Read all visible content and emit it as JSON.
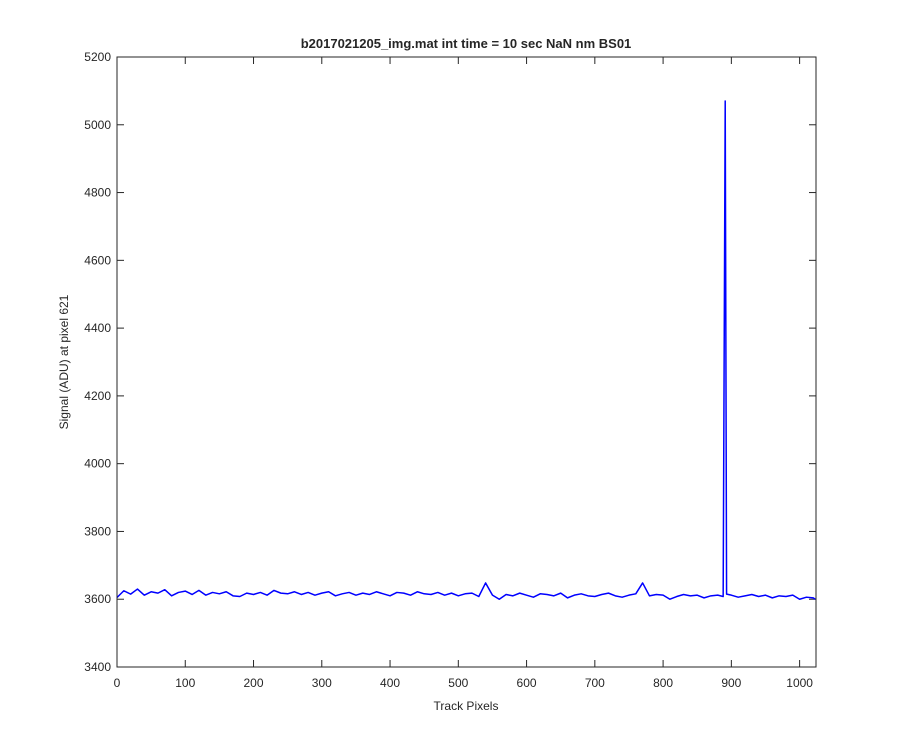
{
  "chart_data": {
    "type": "line",
    "title": "b2017021205_img.mat int time = 10 sec  NaN nm BS01",
    "x_label": "Track Pixels",
    "y_label": "Signal (ADU) at pixel 621",
    "x": [
      0,
      10,
      20,
      30,
      40,
      50,
      60,
      70,
      80,
      90,
      100,
      110,
      120,
      130,
      140,
      150,
      160,
      170,
      180,
      190,
      200,
      210,
      220,
      230,
      240,
      250,
      260,
      270,
      280,
      290,
      300,
      310,
      320,
      330,
      340,
      350,
      360,
      370,
      380,
      390,
      400,
      410,
      420,
      430,
      440,
      450,
      460,
      470,
      480,
      490,
      500,
      510,
      520,
      530,
      540,
      550,
      560,
      570,
      580,
      590,
      600,
      610,
      620,
      630,
      640,
      650,
      660,
      670,
      680,
      690,
      700,
      710,
      720,
      730,
      740,
      750,
      760,
      770,
      780,
      790,
      800,
      810,
      820,
      830,
      840,
      850,
      860,
      870,
      880,
      888,
      891,
      893,
      900,
      910,
      920,
      930,
      940,
      950,
      960,
      970,
      980,
      990,
      1000,
      1010,
      1020,
      1023
    ],
    "series": [
      {
        "name": "signal",
        "color": "#0000ff",
        "values": [
          3605,
          3625,
          3615,
          3630,
          3612,
          3622,
          3618,
          3628,
          3610,
          3620,
          3624,
          3614,
          3626,
          3612,
          3620,
          3616,
          3622,
          3610,
          3608,
          3618,
          3614,
          3620,
          3612,
          3626,
          3618,
          3616,
          3622,
          3614,
          3620,
          3612,
          3618,
          3622,
          3610,
          3616,
          3620,
          3612,
          3618,
          3614,
          3622,
          3616,
          3610,
          3620,
          3618,
          3612,
          3622,
          3616,
          3614,
          3620,
          3612,
          3618,
          3610,
          3616,
          3618,
          3608,
          3648,
          3612,
          3600,
          3614,
          3610,
          3618,
          3612,
          3606,
          3616,
          3614,
          3610,
          3618,
          3604,
          3612,
          3616,
          3610,
          3608,
          3614,
          3618,
          3610,
          3606,
          3612,
          3616,
          3648,
          3610,
          3614,
          3612,
          3600,
          3608,
          3614,
          3610,
          3612,
          3604,
          3610,
          3612,
          3608,
          5070,
          3615,
          3612,
          3606,
          3610,
          3614,
          3608,
          3612,
          3604,
          3610,
          3608,
          3612,
          3600,
          3606,
          3604,
          3600
        ]
      }
    ],
    "xlim": [
      0,
      1024
    ],
    "ylim": [
      3400,
      5200
    ],
    "xticks": [
      0,
      100,
      200,
      300,
      400,
      500,
      600,
      700,
      800,
      900,
      1000
    ],
    "yticks": [
      3400,
      3600,
      3800,
      4000,
      4200,
      4400,
      4600,
      4800,
      5000,
      5200
    ]
  }
}
